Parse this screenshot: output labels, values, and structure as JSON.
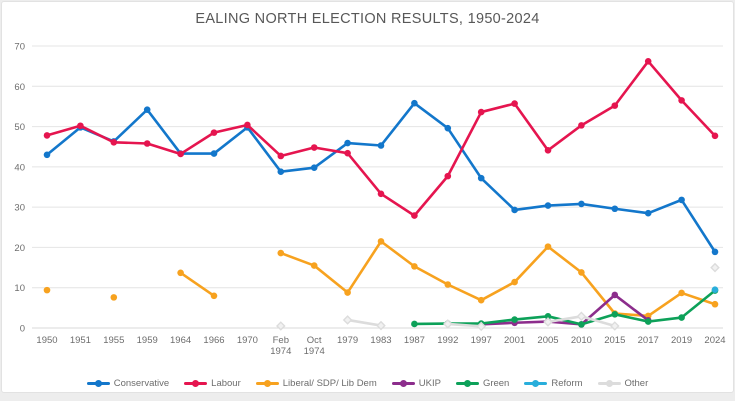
{
  "title": "EALING NORTH ELECTION RESULTS, 1950-2024",
  "chart_data": {
    "type": "line",
    "title": "EALING NORTH ELECTION RESULTS, 1950-2024",
    "xlabel": "",
    "ylabel": "",
    "ylim": [
      0,
      70
    ],
    "yticks": [
      0,
      10,
      20,
      30,
      40,
      50,
      60,
      70
    ],
    "grid": true,
    "legend_position": "bottom",
    "categories": [
      "1950",
      "1951",
      "1955",
      "1959",
      "1964",
      "1966",
      "1970",
      "Feb 1974",
      "Oct 1974",
      "1979",
      "1983",
      "1987",
      "1992",
      "1997",
      "2001",
      "2005",
      "2010",
      "2015",
      "2017",
      "2019",
      "2024"
    ],
    "series": [
      {
        "name": "Conservative",
        "color": "#1377CB",
        "marker": "circle",
        "values": [
          43.0,
          49.8,
          46.3,
          54.2,
          43.3,
          43.3,
          49.8,
          38.8,
          39.8,
          45.9,
          45.3,
          55.8,
          49.6,
          37.2,
          29.3,
          30.4,
          30.8,
          29.6,
          28.5,
          31.8,
          18.9
        ]
      },
      {
        "name": "Labour",
        "color": "#E5154F",
        "marker": "circle",
        "values": [
          47.8,
          50.2,
          46.1,
          45.8,
          43.2,
          48.5,
          50.4,
          42.7,
          44.8,
          43.4,
          33.3,
          27.9,
          37.7,
          53.6,
          55.7,
          44.1,
          50.3,
          55.2,
          66.2,
          56.5,
          47.7
        ]
      },
      {
        "name": "Liberal/ SDP/ Lib Dem",
        "color": "#F7A21F",
        "marker": "circle",
        "values": [
          9.4,
          null,
          7.6,
          null,
          13.7,
          8.0,
          null,
          18.6,
          15.5,
          8.8,
          21.5,
          15.3,
          10.8,
          6.9,
          11.4,
          20.2,
          13.8,
          3.6,
          3.0,
          8.7,
          5.9
        ]
      },
      {
        "name": "UKIP",
        "color": "#8C2D8C",
        "marker": "circle",
        "values": [
          null,
          null,
          null,
          null,
          null,
          null,
          null,
          null,
          null,
          null,
          null,
          null,
          null,
          0.9,
          1.3,
          1.6,
          0.9,
          8.2,
          1.9,
          null,
          null
        ]
      },
      {
        "name": "Green",
        "color": "#0DA159",
        "marker": "circle",
        "values": [
          null,
          null,
          null,
          null,
          null,
          null,
          null,
          null,
          null,
          null,
          null,
          1.0,
          1.1,
          1.1,
          2.1,
          2.9,
          0.9,
          3.4,
          1.6,
          2.6,
          9.3
        ]
      },
      {
        "name": "Reform",
        "color": "#29AEDB",
        "marker": "circle",
        "values": [
          null,
          null,
          null,
          null,
          null,
          null,
          null,
          null,
          null,
          null,
          null,
          null,
          null,
          null,
          null,
          null,
          null,
          null,
          null,
          null,
          9.5
        ]
      },
      {
        "name": "Other",
        "color": "#DCDCDC",
        "marker": "diamond",
        "values": [
          null,
          null,
          null,
          null,
          null,
          null,
          null,
          0.5,
          null,
          2.0,
          0.6,
          null,
          1.0,
          0.4,
          null,
          1.5,
          2.9,
          0.5,
          null,
          null,
          15.0
        ]
      }
    ]
  },
  "colors": {
    "background": "#ffffff",
    "gridline": "#e4e4e4",
    "axis_text": "#6d6d6d",
    "title_text": "#585858"
  }
}
